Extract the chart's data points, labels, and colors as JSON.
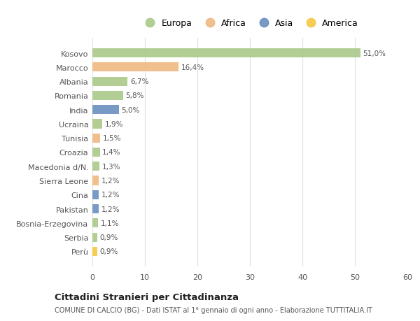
{
  "countries": [
    "Kosovo",
    "Marocco",
    "Albania",
    "Romania",
    "India",
    "Ucraina",
    "Tunisia",
    "Croazia",
    "Macedonia d/N.",
    "Sierra Leone",
    "Cina",
    "Pakistan",
    "Bosnia-Erzegovina",
    "Serbia",
    "Perù"
  ],
  "values": [
    51.0,
    16.4,
    6.7,
    5.8,
    5.0,
    1.9,
    1.5,
    1.4,
    1.3,
    1.2,
    1.2,
    1.2,
    1.1,
    0.9,
    0.9
  ],
  "labels": [
    "51,0%",
    "16,4%",
    "6,7%",
    "5,8%",
    "5,0%",
    "1,9%",
    "1,5%",
    "1,4%",
    "1,3%",
    "1,2%",
    "1,2%",
    "1,2%",
    "1,1%",
    "0,9%",
    "0,9%"
  ],
  "continents": [
    "Europa",
    "Africa",
    "Europa",
    "Europa",
    "Asia",
    "Europa",
    "Africa",
    "Europa",
    "Europa",
    "Africa",
    "Asia",
    "Asia",
    "Europa",
    "Europa",
    "America"
  ],
  "colors": {
    "Europa": "#aac98a",
    "Africa": "#f0b882",
    "Asia": "#6b8fbf",
    "America": "#f5c842"
  },
  "legend_order": [
    "Europa",
    "Africa",
    "Asia",
    "America"
  ],
  "title": "Cittadini Stranieri per Cittadinanza",
  "subtitle": "COMUNE DI CALCIO (BG) - Dati ISTAT al 1° gennaio di ogni anno - Elaborazione TUTTITALIA.IT",
  "xlim": [
    0,
    60
  ],
  "xticks": [
    0,
    10,
    20,
    30,
    40,
    50,
    60
  ],
  "background_color": "#ffffff",
  "grid_color": "#e0e0e0"
}
